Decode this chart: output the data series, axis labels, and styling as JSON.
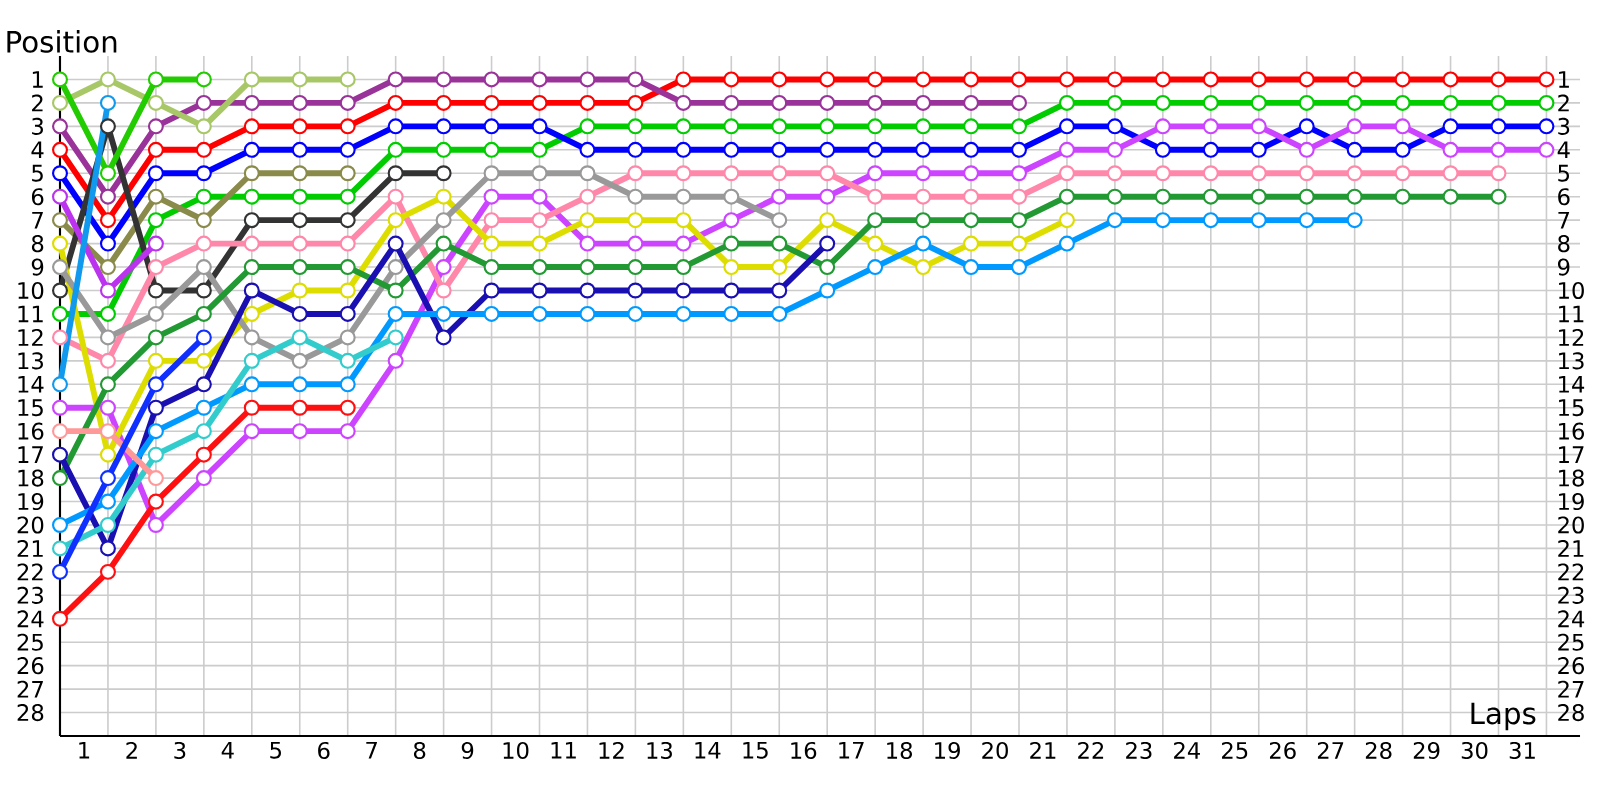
{
  "chart_data": {
    "type": "line",
    "xlabel": "Laps",
    "ylabel": "Position",
    "x": [
      0,
      1,
      2,
      3,
      4,
      5,
      6,
      7,
      8,
      9,
      10,
      11,
      12,
      13,
      14,
      15,
      16,
      17,
      18,
      19,
      20,
      21,
      22,
      23,
      24,
      25,
      26,
      27,
      28,
      29,
      30,
      31
    ],
    "xlim": [
      0,
      31.7
    ],
    "xticks": [
      {
        "value": 0.5,
        "label": "1"
      },
      {
        "value": 1.5,
        "label": "2"
      },
      {
        "value": 2.5,
        "label": "3"
      },
      {
        "value": 3.5,
        "label": "4"
      },
      {
        "value": 4.5,
        "label": "5"
      },
      {
        "value": 5.5,
        "label": "6"
      },
      {
        "value": 6.5,
        "label": "7"
      },
      {
        "value": 7.5,
        "label": "8"
      },
      {
        "value": 8.5,
        "label": "9"
      },
      {
        "value": 9.5,
        "label": "10"
      },
      {
        "value": 10.5,
        "label": "11"
      },
      {
        "value": 11.5,
        "label": "12"
      },
      {
        "value": 12.5,
        "label": "13"
      },
      {
        "value": 13.5,
        "label": "14"
      },
      {
        "value": 14.5,
        "label": "15"
      },
      {
        "value": 15.5,
        "label": "16"
      },
      {
        "value": 16.5,
        "label": "17"
      },
      {
        "value": 17.5,
        "label": "18"
      },
      {
        "value": 18.5,
        "label": "19"
      },
      {
        "value": 19.5,
        "label": "20"
      },
      {
        "value": 20.5,
        "label": "21"
      },
      {
        "value": 21.5,
        "label": "22"
      },
      {
        "value": 22.5,
        "label": "23"
      },
      {
        "value": 23.5,
        "label": "24"
      },
      {
        "value": 24.5,
        "label": "25"
      },
      {
        "value": 25.5,
        "label": "26"
      },
      {
        "value": 26.5,
        "label": "27"
      },
      {
        "value": 27.5,
        "label": "28"
      },
      {
        "value": 28.5,
        "label": "29"
      },
      {
        "value": 29.5,
        "label": "30"
      },
      {
        "value": 30.5,
        "label": "31"
      }
    ],
    "ylim": [
      29,
      0
    ],
    "yticks": [
      1,
      2,
      3,
      4,
      5,
      6,
      7,
      8,
      9,
      10,
      11,
      12,
      13,
      14,
      15,
      16,
      17,
      18,
      19,
      20,
      21,
      22,
      23,
      24,
      25,
      26,
      27,
      28
    ],
    "y2lim": [
      29,
      0
    ],
    "y2ticks": [
      1,
      2,
      3,
      4,
      5,
      6,
      7,
      8,
      9,
      10,
      11,
      12,
      13,
      14,
      15,
      16,
      17,
      18,
      19,
      20,
      21,
      22,
      23,
      24,
      25,
      26,
      27,
      28
    ],
    "grid": true,
    "marker": "circle",
    "line_style": "solid",
    "series": [
      {
        "color": "#ff0000",
        "values": [
          4,
          7,
          4,
          4,
          3,
          3,
          3,
          2,
          2,
          2,
          2,
          2,
          2,
          1,
          1,
          1,
          1,
          1,
          1,
          1,
          1,
          1,
          1,
          1,
          1,
          1,
          1,
          1,
          1,
          1,
          1,
          1
        ]
      },
      {
        "color": "#993399",
        "values": [
          3,
          6,
          3,
          2,
          2,
          2,
          2,
          1,
          1,
          1,
          1,
          1,
          1,
          2,
          2,
          2,
          2,
          2,
          2,
          2,
          2,
          null,
          null,
          null,
          null,
          null,
          null,
          null,
          null,
          null,
          null,
          null
        ]
      },
      {
        "color": "#00cc00",
        "values": [
          11,
          11,
          7,
          6,
          6,
          6,
          6,
          4,
          4,
          4,
          4,
          3,
          3,
          3,
          3,
          3,
          3,
          3,
          3,
          3,
          3,
          2,
          2,
          2,
          2,
          2,
          2,
          2,
          2,
          2,
          2,
          2
        ]
      },
      {
        "color": "#0000ff",
        "values": [
          5,
          8,
          5,
          5,
          4,
          4,
          4,
          3,
          3,
          3,
          3,
          4,
          4,
          4,
          4,
          4,
          4,
          4,
          4,
          4,
          4,
          3,
          3,
          4,
          4,
          4,
          3,
          4,
          4,
          3,
          3,
          3
        ]
      },
      {
        "color": "#cc44ff",
        "values": [
          15,
          15,
          20,
          18,
          16,
          16,
          16,
          13,
          9,
          6,
          6,
          8,
          8,
          8,
          7,
          6,
          6,
          5,
          5,
          5,
          5,
          4,
          4,
          3,
          3,
          3,
          4,
          3,
          3,
          4,
          4,
          4
        ]
      },
      {
        "color": "#a8c868",
        "values": [
          2,
          1,
          2,
          3,
          1,
          1,
          1,
          null,
          null,
          null,
          null,
          null,
          null,
          null,
          null,
          null,
          null,
          null,
          null,
          null,
          null,
          null,
          null,
          null,
          null,
          null,
          null,
          null,
          null,
          null,
          null,
          null
        ]
      },
      {
        "color": "#8a8a4a",
        "values": [
          7,
          9,
          6,
          7,
          5,
          5,
          5,
          null,
          null,
          null,
          null,
          null,
          null,
          null,
          null,
          null,
          null,
          null,
          null,
          null,
          null,
          null,
          null,
          null,
          null,
          null,
          null,
          null,
          null,
          null,
          null,
          null
        ]
      },
      {
        "color": "#333333",
        "values": [
          10,
          3,
          10,
          10,
          7,
          7,
          7,
          5,
          5,
          null,
          null,
          null,
          null,
          null,
          null,
          null,
          null,
          null,
          null,
          null,
          null,
          null,
          null,
          null,
          null,
          null,
          null,
          null,
          null,
          null,
          null,
          null
        ]
      },
      {
        "color": "#ff88aa",
        "values": [
          12,
          13,
          9,
          8,
          8,
          8,
          8,
          6,
          10,
          7,
          7,
          6,
          5,
          5,
          5,
          5,
          5,
          6,
          6,
          6,
          6,
          5,
          5,
          5,
          5,
          5,
          5,
          5,
          5,
          5,
          5,
          null
        ]
      },
      {
        "color": "#dddd00",
        "values": [
          8,
          17,
          13,
          13,
          11,
          10,
          10,
          7,
          6,
          8,
          8,
          7,
          7,
          7,
          9,
          9,
          7,
          8,
          9,
          8,
          8,
          7,
          null,
          null,
          null,
          null,
          null,
          null,
          null,
          null,
          null,
          null
        ]
      },
      {
        "color": "#999999",
        "values": [
          9,
          12,
          11,
          9,
          12,
          13,
          12,
          9,
          7,
          5,
          5,
          5,
          6,
          6,
          6,
          7,
          null,
          null,
          null,
          null,
          null,
          null,
          null,
          null,
          null,
          null,
          null,
          null,
          null,
          null,
          null,
          null
        ]
      },
      {
        "color": "#229933",
        "values": [
          18,
          14,
          12,
          11,
          9,
          9,
          9,
          10,
          8,
          9,
          9,
          9,
          9,
          9,
          8,
          8,
          9,
          7,
          7,
          7,
          7,
          6,
          6,
          6,
          6,
          6,
          6,
          6,
          6,
          6,
          6,
          null
        ]
      },
      {
        "color": "#1a0fb0",
        "values": [
          17,
          21,
          15,
          14,
          10,
          11,
          11,
          8,
          12,
          10,
          10,
          10,
          10,
          10,
          10,
          10,
          8,
          null,
          null,
          null,
          null,
          null,
          null,
          null,
          null,
          null,
          null,
          null,
          null,
          null,
          null,
          null
        ]
      },
      {
        "color": "#0099ff",
        "values": [
          20,
          19,
          16,
          15,
          14,
          14,
          14,
          11,
          11,
          11,
          11,
          11,
          11,
          11,
          11,
          11,
          10,
          9,
          8,
          9,
          9,
          8,
          7,
          7,
          7,
          7,
          7,
          7,
          null,
          null,
          null,
          null
        ]
      },
      {
        "color": "#33cccc",
        "values": [
          21,
          20,
          17,
          16,
          13,
          12,
          13,
          12,
          null,
          null,
          null,
          null,
          null,
          null,
          null,
          null,
          null,
          null,
          null,
          null,
          null,
          null,
          null,
          null,
          null,
          null,
          null,
          null,
          null,
          null,
          null,
          null
        ]
      },
      {
        "color": "#ff9999",
        "values": [
          16,
          16,
          18,
          null,
          null,
          null,
          null,
          null,
          null,
          null,
          null,
          null,
          null,
          null,
          null,
          null,
          null,
          null,
          null,
          null,
          null,
          null,
          null,
          null,
          null,
          null,
          null,
          null,
          null,
          null,
          null,
          null
        ]
      },
      {
        "color": "#ff1010",
        "values": [
          24,
          22,
          19,
          17,
          15,
          15,
          15,
          null,
          null,
          null,
          null,
          null,
          null,
          null,
          null,
          null,
          null,
          null,
          null,
          null,
          null,
          null,
          null,
          null,
          null,
          null,
          null,
          null,
          null,
          null,
          null,
          null
        ]
      },
      {
        "color": "#22cc00",
        "values": [
          1,
          5,
          1,
          1,
          null,
          null,
          null,
          null,
          null,
          null,
          null,
          null,
          null,
          null,
          null,
          null,
          null,
          null,
          null,
          null,
          null,
          null,
          null,
          null,
          null,
          null,
          null,
          null,
          null,
          null,
          null,
          null
        ]
      },
      {
        "color": "#1030ff",
        "values": [
          22,
          18,
          14,
          12,
          null,
          null,
          null,
          null,
          null,
          null,
          null,
          null,
          null,
          null,
          null,
          null,
          null,
          null,
          null,
          null,
          null,
          null,
          null,
          null,
          null,
          null,
          null,
          null,
          null,
          null,
          null,
          null
        ]
      },
      {
        "color": "#bb33ee",
        "values": [
          6,
          10,
          8,
          null,
          null,
          null,
          null,
          null,
          null,
          null,
          null,
          null,
          null,
          null,
          null,
          null,
          null,
          null,
          null,
          null,
          null,
          null,
          null,
          null,
          null,
          null,
          null,
          null,
          null,
          null,
          null,
          null
        ]
      },
      {
        "color": "#1199ee",
        "values": [
          14,
          2,
          null,
          null,
          null,
          null,
          null,
          null,
          null,
          null,
          null,
          null,
          null,
          null,
          null,
          null,
          null,
          null,
          null,
          null,
          null,
          null,
          null,
          null,
          null,
          null,
          null,
          null,
          null,
          null,
          null,
          null
        ]
      }
    ]
  }
}
